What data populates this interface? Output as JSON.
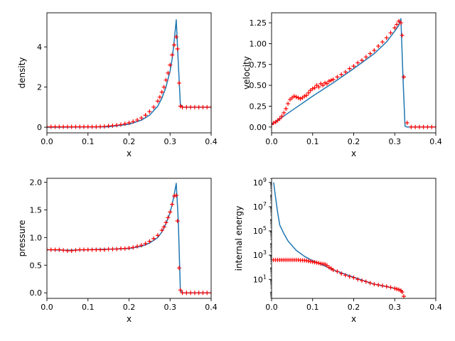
{
  "chart_data": [
    {
      "type": "line",
      "xlabel": "x",
      "ylabel": "density",
      "xlim": [
        0,
        0.4
      ],
      "ylim": [
        -0.28,
        5.7
      ],
      "yscale": "linear",
      "xticks": [
        0.0,
        0.1,
        0.2,
        0.3,
        0.4
      ],
      "xtick_labels": [
        "0.0",
        "0.1",
        "0.2",
        "0.3",
        "0.4"
      ],
      "yticks": [
        0,
        2,
        4
      ],
      "ytick_labels": [
        "0",
        "2",
        "4"
      ],
      "grid": false,
      "series": [
        {
          "kind": "line",
          "color": "#1f77b4",
          "x": [
            0.0,
            0.15,
            0.2,
            0.23,
            0.25,
            0.27,
            0.28,
            0.29,
            0.3,
            0.305,
            0.31,
            0.315,
            0.32,
            0.325,
            0.33,
            0.4
          ],
          "y": [
            0.0,
            0.02,
            0.15,
            0.35,
            0.6,
            1.05,
            1.45,
            2.0,
            2.8,
            3.4,
            4.3,
            5.35,
            3.2,
            1.15,
            1.0,
            1.0
          ]
        },
        {
          "kind": "markers",
          "marker": "+",
          "color": "#ff0000",
          "x": [
            0.0,
            0.01,
            0.02,
            0.03,
            0.04,
            0.05,
            0.06,
            0.07,
            0.08,
            0.09,
            0.1,
            0.11,
            0.12,
            0.13,
            0.14,
            0.15,
            0.16,
            0.17,
            0.18,
            0.19,
            0.2,
            0.21,
            0.22,
            0.23,
            0.24,
            0.25,
            0.26,
            0.27,
            0.275,
            0.28,
            0.285,
            0.29,
            0.295,
            0.3,
            0.305,
            0.31,
            0.315,
            0.318,
            0.322,
            0.325,
            0.33,
            0.34,
            0.35,
            0.36,
            0.37,
            0.38,
            0.39,
            0.4
          ],
          "y": [
            0.02,
            0.02,
            0.02,
            0.02,
            0.02,
            0.02,
            0.02,
            0.02,
            0.02,
            0.02,
            0.02,
            0.02,
            0.02,
            0.03,
            0.04,
            0.06,
            0.08,
            0.1,
            0.13,
            0.17,
            0.22,
            0.28,
            0.36,
            0.46,
            0.6,
            0.78,
            1.0,
            1.3,
            1.5,
            1.75,
            2.0,
            2.35,
            2.7,
            3.1,
            3.6,
            4.1,
            4.5,
            3.9,
            2.2,
            1.05,
            1.0,
            1.0,
            1.0,
            1.0,
            1.0,
            1.0,
            1.0,
            1.0
          ]
        }
      ]
    },
    {
      "type": "line",
      "xlabel": "x",
      "ylabel": "velocity",
      "xlim": [
        0,
        0.4
      ],
      "ylim": [
        -0.07,
        1.37
      ],
      "yscale": "linear",
      "xticks": [
        0.0,
        0.1,
        0.2,
        0.3,
        0.4
      ],
      "xtick_labels": [
        "0.0",
        "0.1",
        "0.2",
        "0.3",
        "0.4"
      ],
      "yticks": [
        0.0,
        0.25,
        0.5,
        0.75,
        1.0,
        1.25
      ],
      "ytick_labels": [
        "0.00",
        "0.25",
        "0.50",
        "0.75",
        "1.00",
        "1.25"
      ],
      "grid": false,
      "series": [
        {
          "kind": "line",
          "color": "#1f77b4",
          "x": [
            0.0,
            0.05,
            0.1,
            0.15,
            0.2,
            0.25,
            0.28,
            0.3,
            0.31,
            0.315,
            0.32,
            0.325,
            0.33,
            0.4
          ],
          "y": [
            0.03,
            0.2,
            0.37,
            0.53,
            0.7,
            0.88,
            1.02,
            1.15,
            1.22,
            1.3,
            0.6,
            0.01,
            0.0,
            0.0
          ]
        },
        {
          "kind": "markers",
          "marker": "+",
          "color": "#ff0000",
          "x": [
            0.0,
            0.005,
            0.01,
            0.015,
            0.02,
            0.025,
            0.03,
            0.035,
            0.04,
            0.045,
            0.05,
            0.055,
            0.06,
            0.065,
            0.07,
            0.075,
            0.08,
            0.085,
            0.09,
            0.095,
            0.1,
            0.105,
            0.11,
            0.115,
            0.12,
            0.125,
            0.13,
            0.135,
            0.14,
            0.145,
            0.15,
            0.16,
            0.17,
            0.18,
            0.19,
            0.2,
            0.21,
            0.22,
            0.23,
            0.24,
            0.25,
            0.26,
            0.27,
            0.28,
            0.29,
            0.3,
            0.305,
            0.31,
            0.315,
            0.318,
            0.322,
            0.33,
            0.34,
            0.35,
            0.36,
            0.37,
            0.38,
            0.39,
            0.4
          ],
          "y": [
            0.03,
            0.05,
            0.06,
            0.08,
            0.1,
            0.13,
            0.17,
            0.22,
            0.28,
            0.33,
            0.35,
            0.37,
            0.36,
            0.35,
            0.34,
            0.35,
            0.37,
            0.38,
            0.41,
            0.44,
            0.46,
            0.47,
            0.5,
            0.48,
            0.52,
            0.5,
            0.53,
            0.52,
            0.55,
            0.56,
            0.57,
            0.6,
            0.63,
            0.66,
            0.7,
            0.73,
            0.77,
            0.8,
            0.84,
            0.88,
            0.92,
            0.97,
            1.02,
            1.07,
            1.13,
            1.19,
            1.23,
            1.27,
            1.25,
            1.1,
            0.6,
            0.05,
            0.0,
            0.0,
            0.0,
            0.0,
            0.0,
            0.0,
            0.0
          ]
        }
      ]
    },
    {
      "type": "line",
      "xlabel": "x",
      "ylabel": "pressure",
      "xlim": [
        0,
        0.4
      ],
      "ylim": [
        -0.1,
        2.07
      ],
      "yscale": "linear",
      "xticks": [
        0.0,
        0.1,
        0.2,
        0.3,
        0.4
      ],
      "xtick_labels": [
        "0.0",
        "0.1",
        "0.2",
        "0.3",
        "0.4"
      ],
      "yticks": [
        0.0,
        0.5,
        1.0,
        1.5,
        2.0
      ],
      "ytick_labels": [
        "0.0",
        "0.5",
        "1.0",
        "1.5",
        "2.0"
      ],
      "grid": false,
      "series": [
        {
          "kind": "line",
          "color": "#1f77b4",
          "x": [
            0.0,
            0.05,
            0.1,
            0.15,
            0.2,
            0.23,
            0.25,
            0.27,
            0.28,
            0.29,
            0.3,
            0.305,
            0.31,
            0.315,
            0.32,
            0.325,
            0.33,
            0.4
          ],
          "y": [
            0.78,
            0.77,
            0.78,
            0.79,
            0.8,
            0.84,
            0.9,
            1.0,
            1.1,
            1.25,
            1.45,
            1.6,
            1.78,
            1.98,
            1.3,
            0.05,
            0.0,
            0.0
          ]
        },
        {
          "kind": "markers",
          "marker": "+",
          "color": "#ff0000",
          "x": [
            0.0,
            0.01,
            0.02,
            0.03,
            0.04,
            0.05,
            0.06,
            0.07,
            0.08,
            0.09,
            0.1,
            0.11,
            0.12,
            0.13,
            0.14,
            0.15,
            0.16,
            0.17,
            0.18,
            0.19,
            0.2,
            0.21,
            0.22,
            0.23,
            0.24,
            0.25,
            0.26,
            0.27,
            0.28,
            0.285,
            0.29,
            0.295,
            0.3,
            0.305,
            0.31,
            0.315,
            0.318,
            0.322,
            0.325,
            0.33,
            0.34,
            0.35,
            0.36,
            0.37,
            0.38,
            0.39,
            0.4
          ],
          "y": [
            0.78,
            0.78,
            0.78,
            0.78,
            0.77,
            0.76,
            0.76,
            0.77,
            0.78,
            0.78,
            0.78,
            0.78,
            0.78,
            0.78,
            0.78,
            0.79,
            0.79,
            0.79,
            0.8,
            0.8,
            0.81,
            0.82,
            0.84,
            0.86,
            0.89,
            0.93,
            0.98,
            1.04,
            1.13,
            1.19,
            1.27,
            1.36,
            1.46,
            1.6,
            1.75,
            1.76,
            1.3,
            0.45,
            0.05,
            0.0,
            0.0,
            0.0,
            0.0,
            0.0,
            0.0,
            0.0,
            0.0
          ]
        }
      ]
    },
    {
      "type": "line",
      "xlabel": "x",
      "ylabel": "internal energy",
      "xlim": [
        0,
        0.4
      ],
      "ylim": [
        0.27,
        2200000000
      ],
      "yscale": "log",
      "xticks": [
        0.0,
        0.1,
        0.2,
        0.3,
        0.4
      ],
      "xtick_labels": [
        "0.0",
        "0.1",
        "0.2",
        "0.3",
        "0.4"
      ],
      "yticks": [
        10,
        1000,
        100000,
        10000000,
        1000000000
      ],
      "ytick_labels": [
        "10^1",
        "10^3",
        "10^5",
        "10^7",
        "10^9"
      ],
      "grid": false,
      "series": [
        {
          "kind": "line",
          "color": "#1f77b4",
          "x": [
            0.005,
            0.01,
            0.015,
            0.02,
            0.03,
            0.04,
            0.05,
            0.06,
            0.08,
            0.1,
            0.12,
            0.15,
            0.2,
            0.25,
            0.28,
            0.3,
            0.31,
            0.315,
            0.32
          ],
          "y": [
            1000000000,
            50000000,
            3000000,
            300000,
            60000,
            15000,
            6000,
            2500,
            800,
            350,
            180,
            60,
            15,
            4,
            2.5,
            1.8,
            1.5,
            1.3,
            0.8
          ]
        },
        {
          "kind": "markers",
          "marker": "+",
          "color": "#ff0000",
          "x": [
            0.0,
            0.005,
            0.01,
            0.015,
            0.02,
            0.025,
            0.03,
            0.035,
            0.04,
            0.045,
            0.05,
            0.055,
            0.06,
            0.065,
            0.07,
            0.075,
            0.08,
            0.085,
            0.09,
            0.095,
            0.1,
            0.105,
            0.11,
            0.115,
            0.12,
            0.125,
            0.13,
            0.135,
            0.14,
            0.145,
            0.15,
            0.16,
            0.17,
            0.18,
            0.19,
            0.2,
            0.21,
            0.22,
            0.23,
            0.24,
            0.25,
            0.26,
            0.27,
            0.28,
            0.29,
            0.3,
            0.305,
            0.31,
            0.315,
            0.318,
            0.322
          ],
          "y": [
            400,
            400,
            400,
            400,
            400,
            400,
            400,
            400,
            400,
            400,
            400,
            400,
            400,
            400,
            380,
            380,
            370,
            350,
            330,
            300,
            280,
            260,
            240,
            220,
            200,
            190,
            180,
            140,
            100,
            80,
            60,
            45,
            30,
            22,
            17,
            14,
            10,
            8,
            6.5,
            5,
            4,
            3.5,
            3,
            2.6,
            2.2,
            1.8,
            1.6,
            1.4,
            1.2,
            0.9,
            0.4
          ]
        }
      ]
    }
  ]
}
